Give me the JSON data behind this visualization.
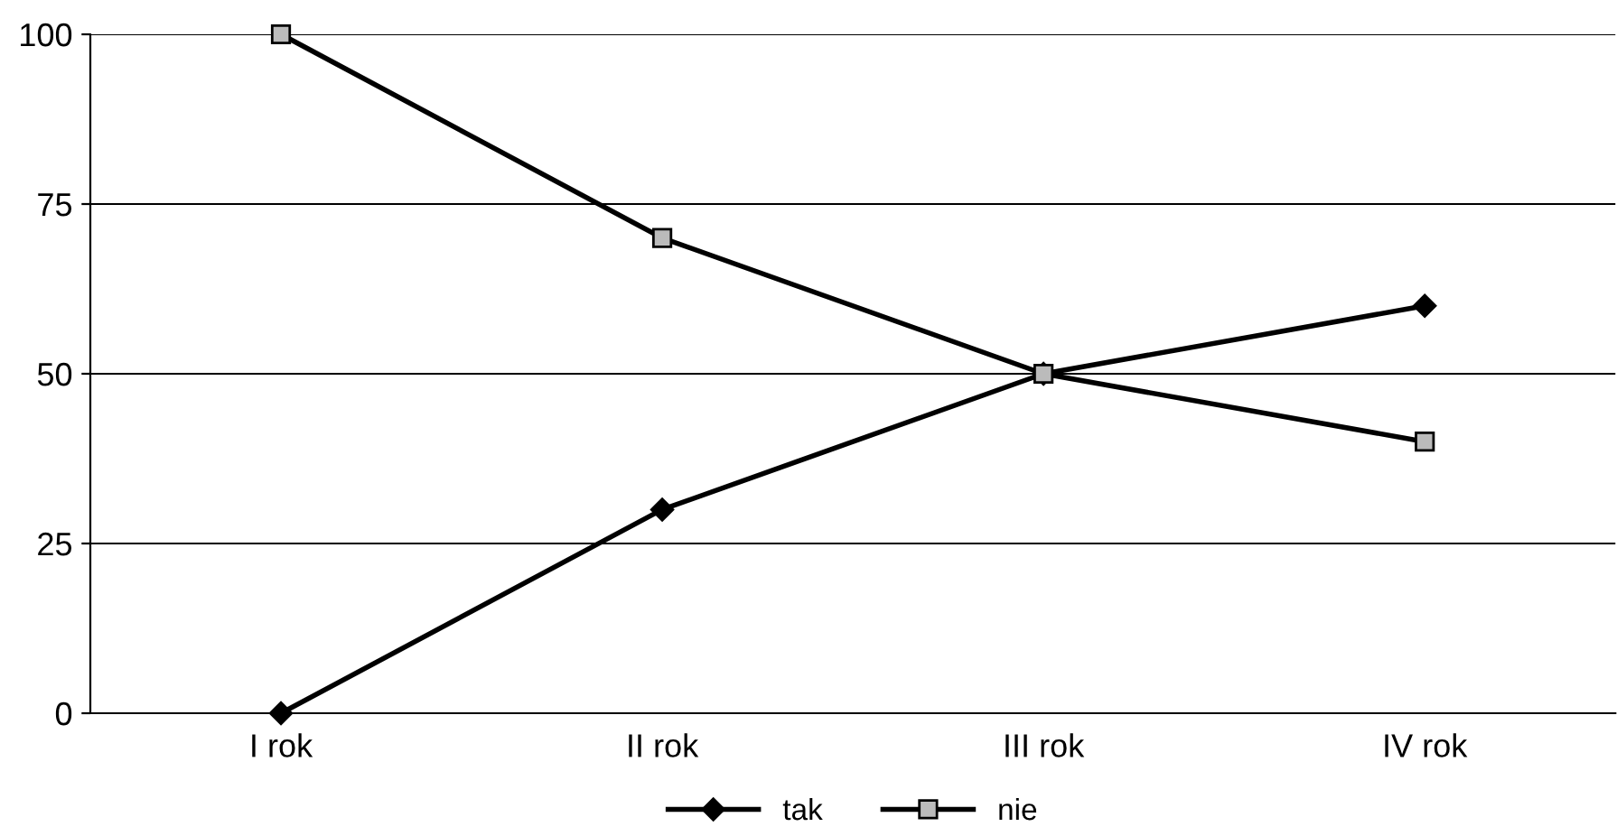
{
  "chart_data": {
    "type": "line",
    "categories": [
      "I rok",
      "II rok",
      "III rok",
      "IV rok"
    ],
    "series": [
      {
        "name": "tak",
        "color": "#000000",
        "marker": "diamond",
        "values": [
          0,
          30,
          50,
          60
        ]
      },
      {
        "name": "nie",
        "color": "#000000",
        "marker": "square",
        "values": [
          100,
          70,
          50,
          40
        ]
      }
    ],
    "ylim": [
      0,
      100
    ],
    "yticks": [
      0,
      25,
      50,
      75,
      100
    ],
    "grid": "y",
    "legend": "bottom",
    "line_style": "solid"
  }
}
